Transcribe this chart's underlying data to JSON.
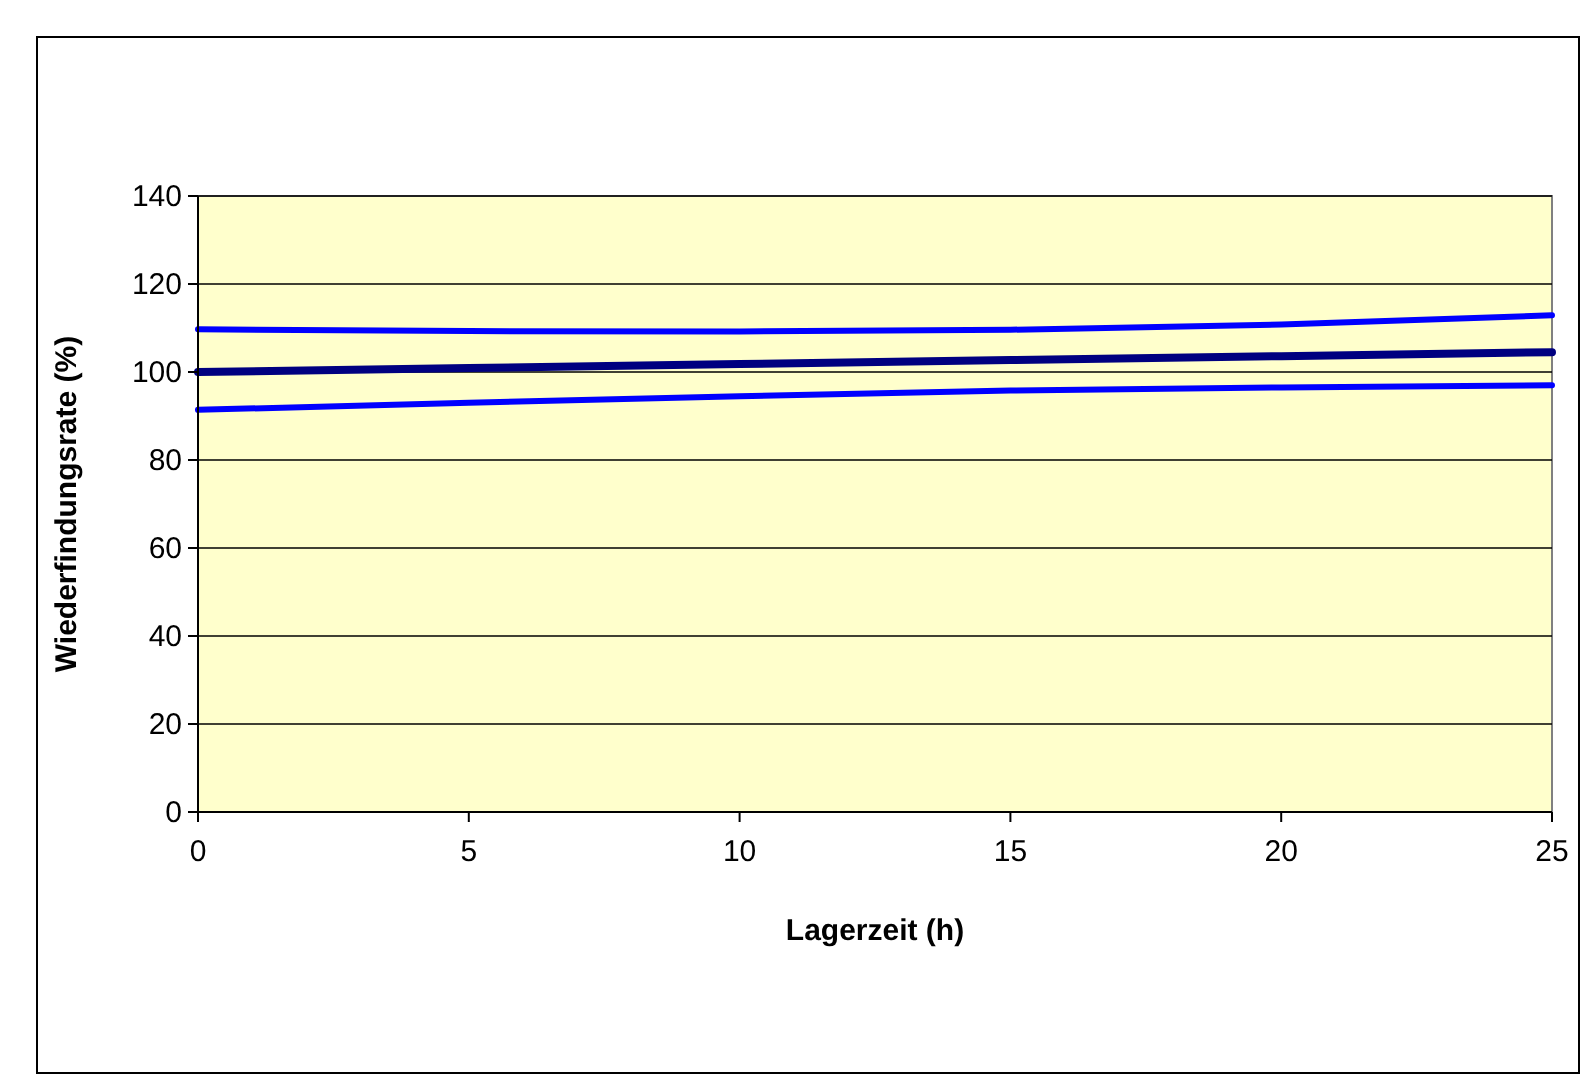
{
  "chart_data": {
    "type": "line",
    "xlabel": "Lagerzeit (h)",
    "ylabel": "Wiederfindungsrate (%)",
    "x": [
      0,
      5,
      10,
      15,
      20,
      25
    ],
    "series": [
      {
        "color": "#0000ff",
        "values": [
          109.7,
          109.3,
          109.2,
          109.6,
          110.8,
          112.9
        ]
      },
      {
        "color": "#000080",
        "values": [
          100,
          100.9,
          101.8,
          102.7,
          103.6,
          104.5
        ]
      },
      {
        "color": "#0000ff",
        "values": [
          91.4,
          93,
          94.5,
          95.8,
          96.5,
          97
        ]
      }
    ],
    "xlim": [
      0,
      25
    ],
    "xticks": [
      0,
      5,
      10,
      15,
      20,
      25
    ],
    "ylim": [
      0,
      140
    ],
    "yticks": [
      0,
      20,
      40,
      60,
      80,
      100,
      120,
      140
    ],
    "grid": "y",
    "marker": "none",
    "line_style": "solid"
  }
}
